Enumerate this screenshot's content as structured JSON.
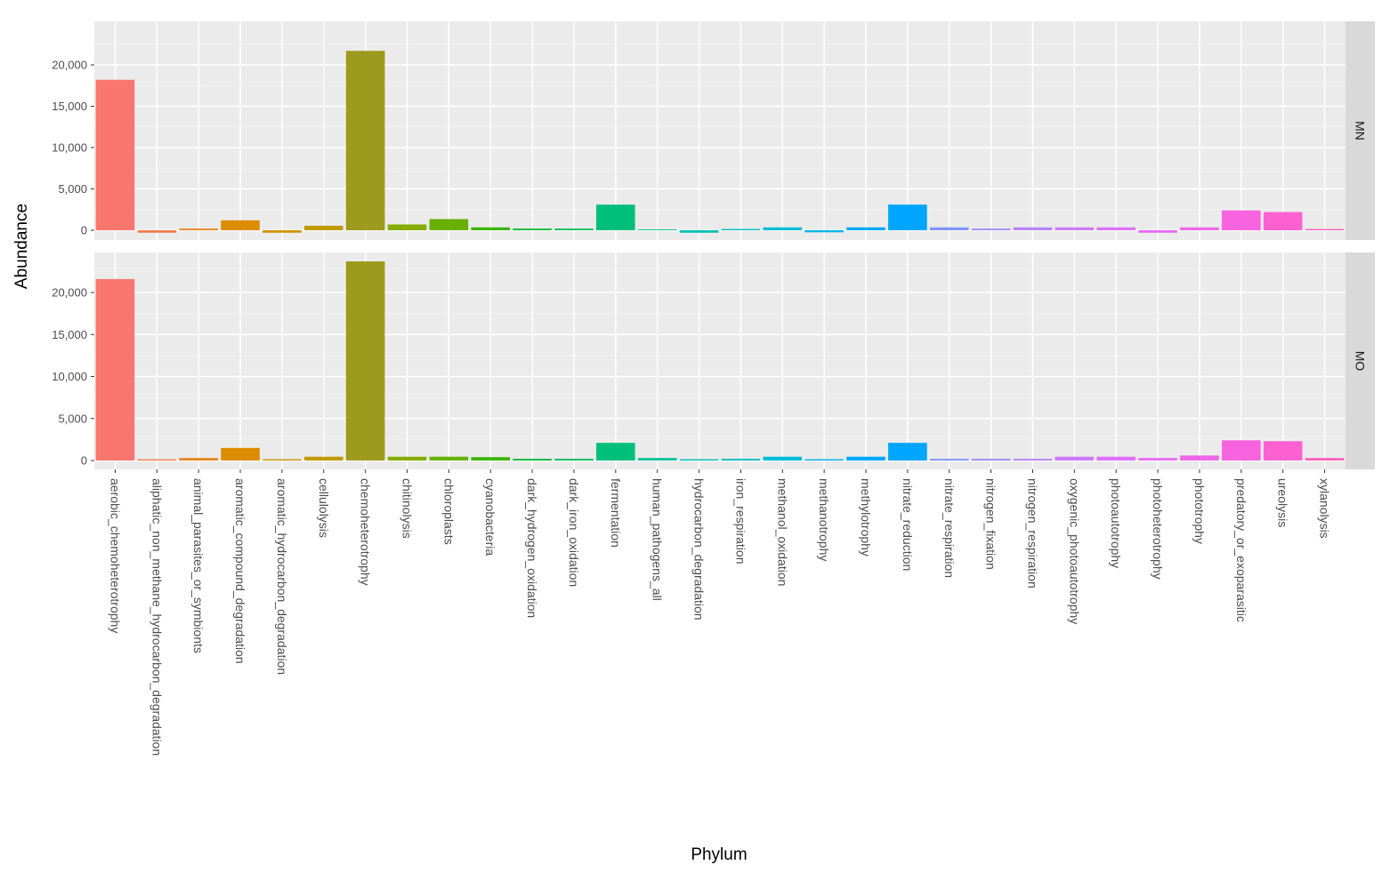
{
  "chart_data": {
    "type": "bar",
    "xlabel": "Phylum",
    "ylabel": "Abundance",
    "ylim": [
      0,
      25000
    ],
    "y_ticks": [
      0,
      5000,
      10000,
      15000,
      20000
    ],
    "y_tick_labels": [
      "0",
      "5,000",
      "10,000",
      "15,000",
      "20,000"
    ],
    "grid": true,
    "legend": "none",
    "categories": [
      "aerobic_chemoheterotrophy",
      "aliphatic_non_methane_hydrocarbon_degradation",
      "animal_parasites_or_symbionts",
      "aromatic_compound_degradation",
      "aromatic_hydrocarbon_degradation",
      "cellulolysis",
      "chemoheterotrophy",
      "chitinolysis",
      "chloroplasts",
      "cyanobacteria",
      "dark_hydrogen_oxidation",
      "dark_iron_oxidation",
      "fermentation",
      "human_pathogens_all",
      "hydrocarbon_degradation",
      "iron_respiration",
      "methanol_oxidation",
      "methanotrophy",
      "methylotrophy",
      "nitrate_reduction",
      "nitrate_respiration",
      "nitrogen_fixation",
      "nitrogen_respiration",
      "oxygenic_photoautotrophy",
      "photoautotrophy",
      "photoheterotrophy",
      "phototrophy",
      "predatory_or_exoparasitic",
      "ureolysis",
      "xylanolysis"
    ],
    "colors": [
      "#F8766D",
      "#F07E4F",
      "#E7851E",
      "#DC8C00",
      "#CF9400",
      "#C09A00",
      "#9D9A1E",
      "#85AD00",
      "#68B100",
      "#39B600",
      "#00BA38",
      "#00BD5E",
      "#00BF7D",
      "#00C199",
      "#00C0B4",
      "#00BFC4",
      "#00BCD8",
      "#00B5E9",
      "#00A9FF",
      "#00A5FF",
      "#7F96FF",
      "#9E8AFF",
      "#B983FF",
      "#CC7AF9",
      "#DC71FA",
      "#E76BF3",
      "#F066EA",
      "#F863DF",
      "#FD61D1",
      "#FF62BC"
    ],
    "series": [
      {
        "name": "MN",
        "values": [
          18200,
          -300,
          200,
          1200,
          -300,
          550,
          21700,
          700,
          1350,
          350,
          200,
          200,
          3100,
          100,
          -300,
          150,
          350,
          -250,
          350,
          3100,
          350,
          200,
          350,
          350,
          350,
          -300,
          350,
          2400,
          2200,
          150
        ]
      },
      {
        "name": "MO",
        "values": [
          21600,
          150,
          300,
          1500,
          150,
          450,
          23700,
          450,
          450,
          400,
          200,
          200,
          2100,
          300,
          150,
          200,
          450,
          150,
          450,
          2100,
          200,
          200,
          200,
          450,
          450,
          300,
          600,
          2400,
          2300,
          300
        ]
      }
    ]
  }
}
